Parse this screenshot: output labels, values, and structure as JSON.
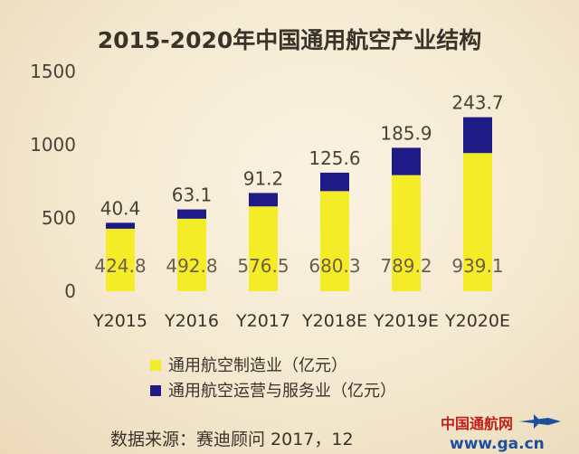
{
  "chart_data": {
    "type": "bar",
    "stacked": true,
    "title": "2015-2020年中国通用航空产业结构",
    "categories": [
      "Y2015",
      "Y2016",
      "Y2017",
      "Y2018E",
      "Y2019E",
      "Y2020E"
    ],
    "series": [
      {
        "name": "通用航空制造业（亿元）",
        "color": "#f4ec26",
        "values": [
          424.8,
          492.8,
          576.5,
          680.3,
          789.2,
          939.1
        ],
        "labels": [
          "424.8",
          "492.8",
          "576.5",
          "680.3",
          "789.2",
          "939.1"
        ]
      },
      {
        "name": "通用航空运营与服务业（亿元）",
        "color": "#1e1a86",
        "values": [
          40.4,
          63.1,
          91.2,
          125.6,
          185.9,
          243.7
        ],
        "labels": [
          "40.4",
          "63.1",
          "91.2",
          "125.6",
          "185.9",
          "243.7"
        ]
      }
    ],
    "ylim": [
      0,
      1500
    ],
    "yticks": [
      "0",
      "500",
      "1000",
      "1500"
    ],
    "xlabel": "",
    "ylabel": "",
    "grid": false,
    "legend": "bottom"
  },
  "source": "数据来源：赛迪顾问 2017，12",
  "watermark": {
    "brand": "中国通航网",
    "url": "www.ga.cn"
  }
}
